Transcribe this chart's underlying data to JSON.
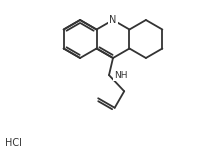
{
  "background": "#ffffff",
  "line_color": "#333333",
  "line_width": 1.3,
  "text_color": "#333333",
  "font_size": 7.0,
  "HCl_text": "HCl",
  "N_label": "N",
  "NH_label": "NH"
}
